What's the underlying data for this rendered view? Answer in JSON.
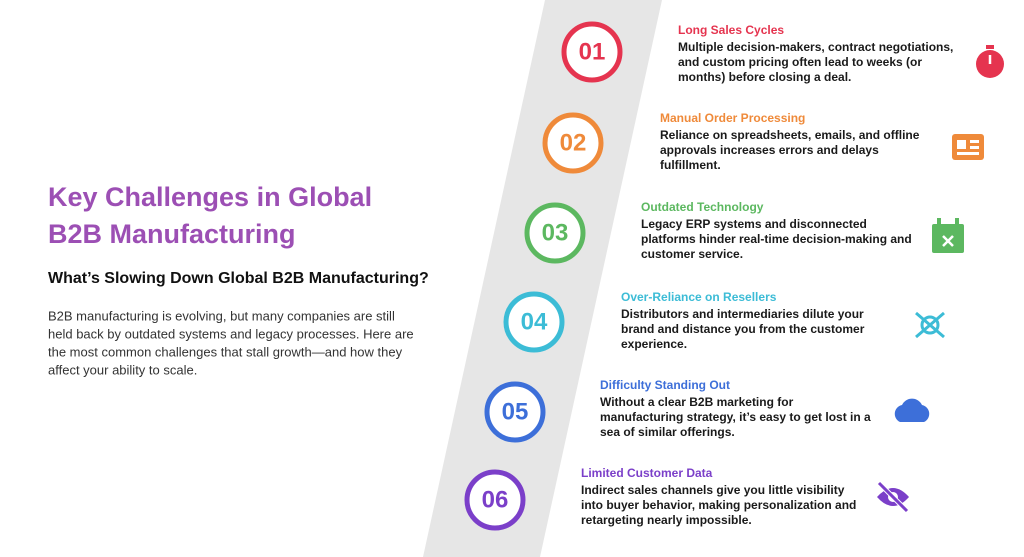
{
  "header": {
    "title_lines": [
      "Key Challenges in Global",
      "B2B Manufacturing"
    ],
    "subtitle": "What’s Slowing Down Global B2B Manufacturing?",
    "body_lines": [
      "B2B manufacturing is evolving, but many companies are still",
      "held back by outdated systems and legacy processes. Here are",
      "the most common challenges that stall growth—and how they",
      "affect your ability to scale."
    ]
  },
  "items": [
    {
      "number": "01",
      "color": "#e5344f",
      "title": "Long Sales Cycles",
      "lines": [
        "Multiple decision-makers, contract negotiations,",
        "and custom pricing often lead to weeks (or",
        "months) before closing a deal."
      ]
    },
    {
      "number": "02",
      "color": "#ef8a3a",
      "title": "Manual Order Processing",
      "lines": [
        "Reliance on spreadsheets, emails, and offline",
        "approvals increases errors and delays",
        "fulfillment."
      ]
    },
    {
      "number": "03",
      "color": "#5cb860",
      "title": "Outdated Technology",
      "lines": [
        "Legacy ERP systems and disconnected",
        "platforms hinder real-time decision-making and",
        "customer service."
      ]
    },
    {
      "number": "04",
      "color": "#3cbcd6",
      "title": "Over-Reliance on Resellers",
      "lines": [
        "Distributors and intermediaries dilute your",
        "brand and distance you from the customer",
        "experience."
      ]
    },
    {
      "number": "05",
      "color": "#3d6fd9",
      "title": "Difficulty Standing Out",
      "lines": [
        "Without a clear B2B marketing for",
        "manufacturing strategy, it’s easy to get lost in a",
        "sea of similar offerings."
      ]
    },
    {
      "number": "06",
      "color": "#7b3fc9",
      "title": "Limited Customer Data",
      "lines": [
        "Indirect sales channels give you little visibility",
        "into buyer behavior, making personalization and",
        "retargeting nearly impossible."
      ]
    }
  ]
}
